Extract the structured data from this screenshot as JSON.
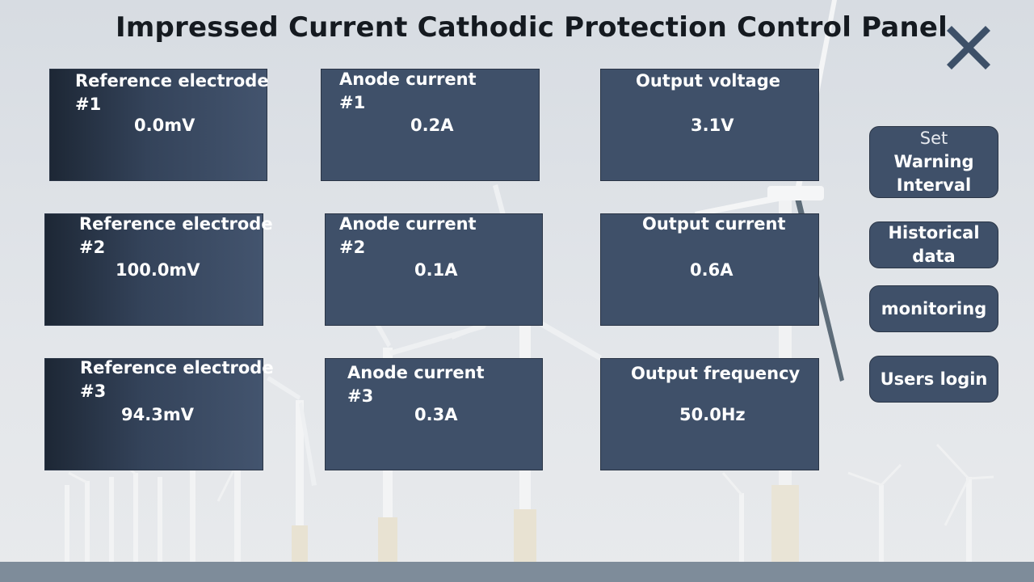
{
  "header": {
    "title": "Impressed Current Cathodic Protection Control Panel"
  },
  "window": {
    "close_icon": "close-icon"
  },
  "panels": {
    "ref1": {
      "label_line1": "Reference electrode",
      "label_line2": "#1",
      "value": "0.0mV"
    },
    "anode1": {
      "label_line1": "Anode current",
      "label_line2": "#1",
      "value": "0.2A"
    },
    "out_voltage": {
      "label": "Output voltage",
      "value": "3.1V"
    },
    "ref2": {
      "label_line1": "Reference electrode",
      "label_line2": "#2",
      "value": "100.0mV"
    },
    "anode2": {
      "label_line1": "Anode current",
      "label_line2": "#2",
      "value": "0.1A"
    },
    "out_current": {
      "label": "Output current",
      "value": "0.6A"
    },
    "ref3": {
      "label_line1": "Reference electrode",
      "label_line2": "#3",
      "value": "94.3mV"
    },
    "anode3": {
      "label_line1": "Anode current",
      "label_line2": "#3",
      "value": "0.3A"
    },
    "out_frequency": {
      "label": "Output frequency",
      "value": "50.0Hz"
    }
  },
  "sidebar": {
    "warning": {
      "line1": "Set",
      "line2": "Warning",
      "line3": "Interval"
    },
    "historical": {
      "line1": "Historical",
      "line2": "data"
    },
    "monitoring": {
      "label": "monitoring"
    },
    "login": {
      "label": "Users login"
    }
  },
  "colors": {
    "panel": "#3f5069",
    "panel_border": "#2a3546",
    "accent": "#3d5068",
    "background": "#dde1e6"
  }
}
